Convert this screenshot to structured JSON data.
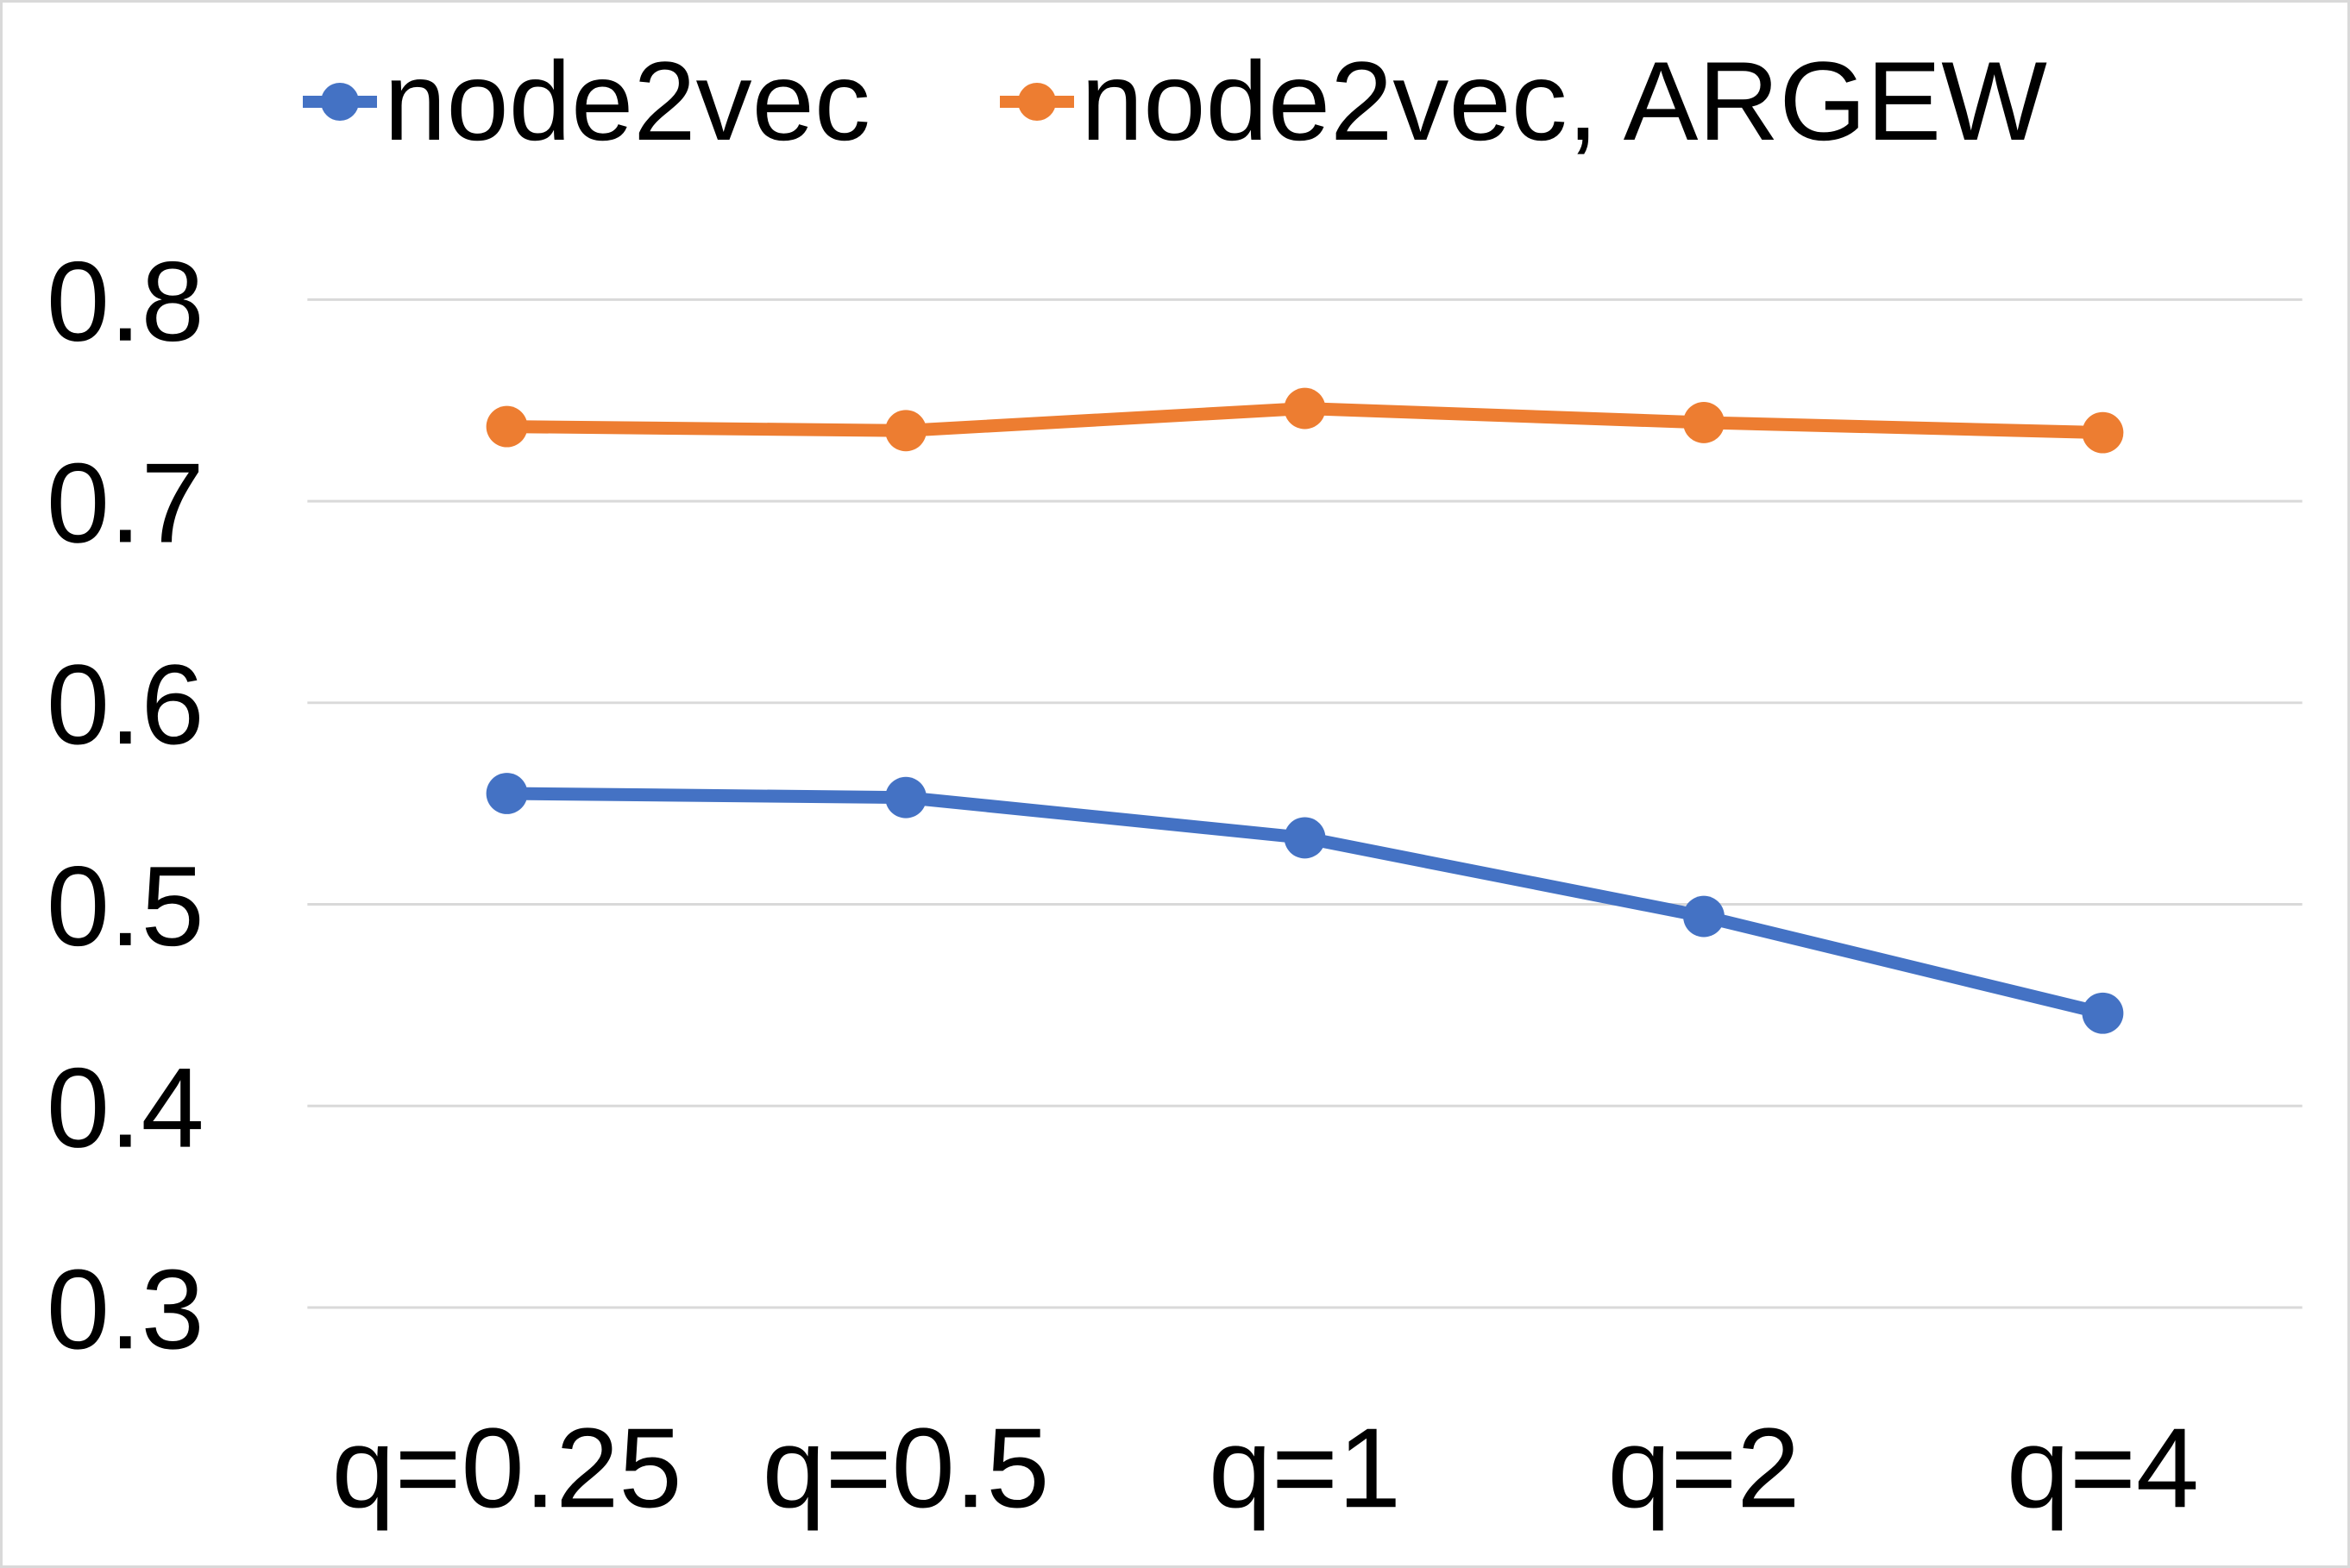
{
  "chart_data": {
    "type": "line",
    "title": "",
    "categories": [
      "q=0.25",
      "q=0.5",
      "q=1",
      "q=2",
      "q=4"
    ],
    "series": [
      {
        "name": "node2vec",
        "color": "#4472C4",
        "values": [
          0.555,
          0.553,
          0.533,
          0.494,
          0.446
        ]
      },
      {
        "name": "node2vec, ARGEW",
        "color": "#ED7D31",
        "values": [
          0.737,
          0.735,
          0.746,
          0.739,
          0.734
        ]
      }
    ],
    "x_axis": {
      "tick_labels": [
        "q=0.25",
        "q=0.5",
        "q=1",
        "q=2",
        "q=4"
      ]
    },
    "y_axis": {
      "range": [
        0.25,
        0.8
      ],
      "tick_step": 0.1,
      "tick_labels": [
        "0.8",
        "0.7",
        "0.6",
        "0.5",
        "0.4",
        "0.3"
      ]
    },
    "legend": {
      "position": "top"
    },
    "grid": true,
    "colors": {
      "gridline": "#D9D9D9",
      "text": "#000000",
      "background": "#FFFFFF",
      "border": "#D9D9D9"
    }
  }
}
